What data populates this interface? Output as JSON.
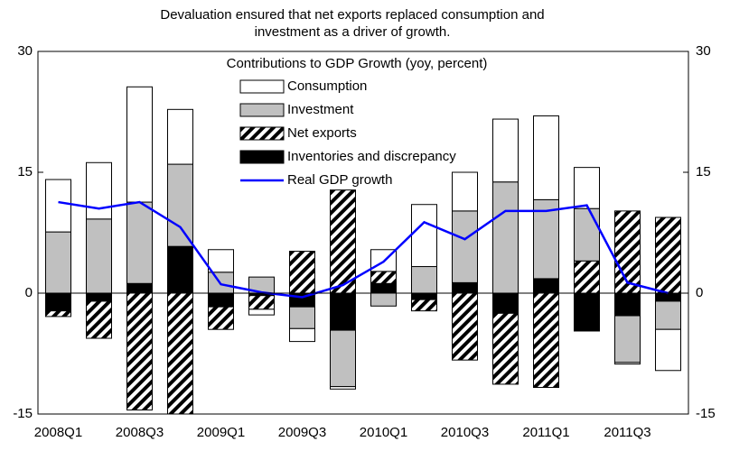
{
  "chart_data": {
    "type": "bar",
    "title": [
      "Devaluation ensured  that net exports replaced consumption and",
      "investment as a driver of growth."
    ],
    "legend_title": "Contributions to GDP Growth (yoy, percent)",
    "categories": [
      "2008Q1",
      null,
      "2008Q3",
      null,
      "2009Q1",
      null,
      "2009Q3",
      null,
      "2010Q1",
      null,
      "2010Q3",
      null,
      "2011Q1",
      null,
      "2011Q3",
      null
    ],
    "series": [
      {
        "name": "Consumption",
        "type": "bar",
        "color": "#ffffff",
        "values": [
          6.5,
          7.0,
          14.3,
          6.8,
          2.8,
          -0.7,
          -1.6,
          -0.3,
          2.7,
          7.7,
          4.8,
          7.8,
          10.4,
          5.1,
          -0.2,
          -5.1
        ]
      },
      {
        "name": "Investment",
        "type": "bar",
        "color": "#c0c0c0",
        "values": [
          7.6,
          9.2,
          10.1,
          10.2,
          2.6,
          2.0,
          -2.7,
          -7.0,
          -1.6,
          3.3,
          8.9,
          13.8,
          9.8,
          6.5,
          -5.8,
          -3.5
        ]
      },
      {
        "name": "Net exports",
        "type": "bar",
        "color": "#000000",
        "pattern": "hatch",
        "values": [
          -0.7,
          -4.6,
          -14.5,
          -15.0,
          -2.8,
          -1.7,
          5.2,
          12.8,
          1.5,
          -1.4,
          -8.3,
          -8.8,
          -11.7,
          4.0,
          10.2,
          9.4
        ]
      },
      {
        "name": "Inventories and discrepancy",
        "type": "bar",
        "color": "#000000",
        "values": [
          -2.2,
          -1.0,
          1.2,
          5.8,
          -1.7,
          -0.3,
          -1.7,
          -4.6,
          1.2,
          -0.8,
          1.3,
          -2.5,
          1.8,
          -4.7,
          -2.8,
          -1.0
        ]
      },
      {
        "name": "Real GDP growth",
        "type": "line",
        "color": "#0000ff",
        "values": [
          11.3,
          10.5,
          11.3,
          8.2,
          1.1,
          0.1,
          -0.5,
          1.0,
          3.9,
          8.8,
          6.7,
          10.2,
          10.2,
          10.9,
          1.3,
          0.0
        ]
      }
    ],
    "stack_order": [
      "Inventories and discrepancy",
      "Net exports",
      "Investment",
      "Consumption"
    ],
    "ylim": [
      -15,
      30
    ],
    "yticks": [
      -15,
      0,
      15,
      30
    ],
    "y2lim": [
      -15,
      30
    ],
    "y2ticks": [
      -15,
      0,
      15,
      30
    ]
  }
}
